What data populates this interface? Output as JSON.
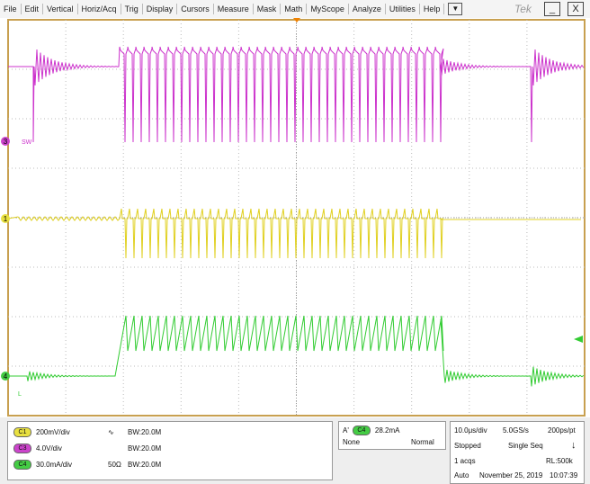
{
  "menu": [
    "File",
    "Edit",
    "Vertical",
    "Horiz/Acq",
    "Trig",
    "Display",
    "Cursors",
    "Measure",
    "Mask",
    "Math",
    "MyScope",
    "Analyze",
    "Utilities",
    "Help"
  ],
  "menu_dropdown": "▼",
  "brand": "Tek",
  "window_buttons": [
    "_",
    "X"
  ],
  "markers": {
    "ch3": "3",
    "ch3_label": "SW",
    "ch1": "1",
    "ch4": "4",
    "ch4_label": "L"
  },
  "channels": [
    {
      "badge": "C1",
      "scale": "200mV/div",
      "extra": "∿",
      "bandwidth": "BW:20.0M"
    },
    {
      "badge": "C3",
      "scale": "4.0V/div",
      "bandwidth": "BW:20.0M"
    },
    {
      "badge": "C4",
      "scale": "30.0mA/div",
      "extra": "50Ω",
      "bandwidth": "BW:20.0M"
    }
  ],
  "trigger": {
    "prefix": "A'",
    "badge": "C4",
    "level": "28.2mA",
    "coupling": "None",
    "mode": "Normal"
  },
  "acquisition": {
    "timebase": "10.0μs/div",
    "sample_rate": "5.0GS/s",
    "resolution": "200ps/pt",
    "state": "Stopped",
    "sequence": "Single Seq",
    "acqs": "1 acqs",
    "record_length": "RL:500k",
    "mode": "Auto",
    "date": "November 25, 2019",
    "time": "10:07:39"
  }
}
